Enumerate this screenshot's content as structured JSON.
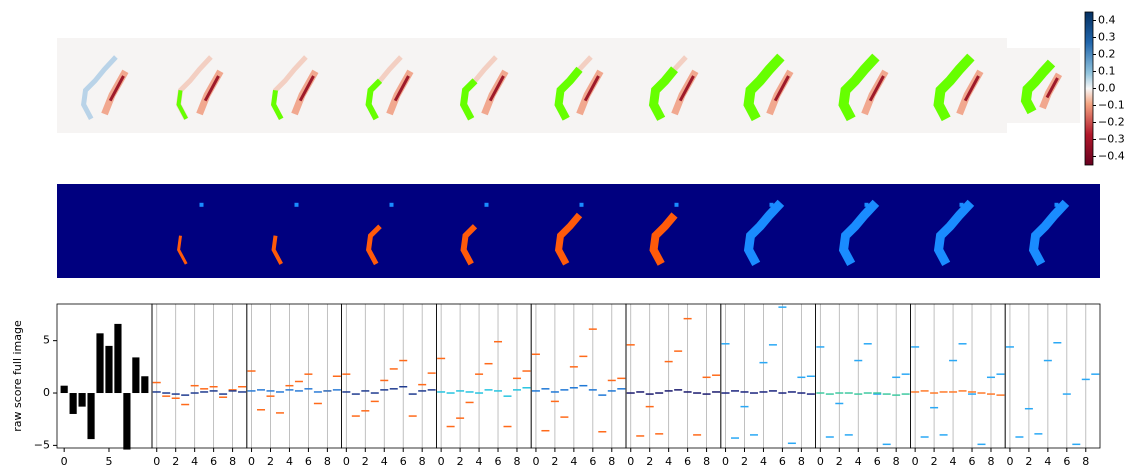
{
  "chart_data": [
    {
      "type": "colorbar",
      "ylim": [
        -0.45,
        0.45
      ],
      "yticks": [
        {
          "value": -0.4,
          "label": "−0.4"
        },
        {
          "value": -0.3,
          "label": "−0.3"
        },
        {
          "value": -0.2,
          "label": "−0.2"
        },
        {
          "value": -0.1,
          "label": "−0.1"
        },
        {
          "value": 0,
          "label": "0.0"
        },
        0.1,
        0.2,
        0.3,
        0.4
      ]
    },
    {
      "type": "bar",
      "ylabel": "raw score full image",
      "x": [
        0,
        1,
        2,
        3,
        4,
        5,
        6,
        7,
        8,
        9
      ],
      "values": [
        0.7,
        -2.0,
        -1.3,
        -4.4,
        5.7,
        4.5,
        6.6,
        -5.4,
        3.4,
        1.6
      ],
      "color": "#000000",
      "xlim": [
        -0.8,
        9.8
      ],
      "xticks": [
        0,
        5
      ],
      "ylim": [
        -5.25,
        8.5
      ],
      "yticks": [
        {
          "value": -5,
          "label": "−5"
        },
        0,
        5
      ]
    },
    {
      "type": "dash",
      "x": [
        0,
        1,
        2,
        3,
        4,
        5,
        6,
        7,
        8,
        9
      ],
      "xlim": [
        -0.5,
        9.5
      ],
      "xticks": [
        0,
        2,
        4,
        6,
        8
      ],
      "ylim": [
        -5.25,
        8.5
      ],
      "grid": true,
      "series": [
        {
          "color": "#ff6a1a",
          "values": [
            1.0,
            -0.3,
            -0.5,
            -1.1,
            0.7,
            0.4,
            0.6,
            -0.4,
            0.3,
            0.6
          ]
        },
        {
          "color": "#1f3b8f",
          "values": [
            0.1,
            0.0,
            -0.1,
            -0.2,
            0.0,
            0.1,
            0.2,
            -0.1,
            0.2,
            0.1
          ]
        }
      ]
    },
    {
      "type": "dash",
      "x": [
        0,
        1,
        2,
        3,
        4,
        5,
        6,
        7,
        8,
        9
      ],
      "xlim": [
        -0.5,
        9.5
      ],
      "xticks": [
        0,
        2,
        4,
        6,
        8
      ],
      "ylim": [
        -5.25,
        8.5
      ],
      "grid": true,
      "series": [
        {
          "color": "#ff6a1a",
          "values": [
            2.1,
            -1.6,
            -0.3,
            -1.9,
            0.7,
            1.1,
            1.8,
            -1.0,
            0.2,
            1.6
          ]
        },
        {
          "color": "#2a7bd6",
          "values": [
            0.2,
            0.3,
            0.2,
            0.1,
            0.3,
            0.2,
            0.4,
            0.1,
            0.2,
            0.3
          ]
        }
      ]
    },
    {
      "type": "dash",
      "x": [
        0,
        1,
        2,
        3,
        4,
        5,
        6,
        7,
        8,
        9
      ],
      "xlim": [
        -0.5,
        9.5
      ],
      "xticks": [
        0,
        2,
        4,
        6,
        8
      ],
      "ylim": [
        -5.25,
        8.5
      ],
      "grid": true,
      "series": [
        {
          "color": "#ff6a1a",
          "values": [
            1.8,
            -2.2,
            -1.7,
            -0.8,
            1.2,
            2.3,
            3.1,
            -2.2,
            0.8,
            1.9
          ]
        },
        {
          "color": "#1f3b8f",
          "values": [
            0.1,
            -0.1,
            0.2,
            0.0,
            0.3,
            0.4,
            0.6,
            -0.1,
            0.2,
            0.3
          ]
        }
      ]
    },
    {
      "type": "dash",
      "x": [
        0,
        1,
        2,
        3,
        4,
        5,
        6,
        7,
        8,
        9
      ],
      "xlim": [
        -0.5,
        9.5
      ],
      "xticks": [
        0,
        2,
        4,
        6,
        8
      ],
      "ylim": [
        -5.25,
        8.5
      ],
      "grid": true,
      "series": [
        {
          "color": "#ff6a1a",
          "values": [
            3.3,
            -3.2,
            -2.4,
            -0.9,
            1.8,
            2.8,
            4.9,
            -3.2,
            1.4,
            2.1
          ]
        },
        {
          "color": "#27c4e0",
          "values": [
            0.1,
            0.0,
            0.2,
            0.1,
            0.0,
            0.3,
            0.2,
            -0.3,
            0.3,
            0.5
          ]
        }
      ]
    },
    {
      "type": "dash",
      "x": [
        0,
        1,
        2,
        3,
        4,
        5,
        6,
        7,
        8,
        9
      ],
      "xlim": [
        -0.5,
        9.5
      ],
      "xticks": [
        0,
        2,
        4,
        6,
        8
      ],
      "ylim": [
        -5.25,
        8.5
      ],
      "grid": true,
      "series": [
        {
          "color": "#ff6a1a",
          "values": [
            3.7,
            -3.6,
            -0.8,
            -2.3,
            2.5,
            3.5,
            6.1,
            -3.7,
            1.2,
            1.4
          ]
        },
        {
          "color": "#1f78d6",
          "values": [
            0.2,
            0.4,
            0.1,
            0.3,
            0.5,
            0.7,
            0.3,
            -0.2,
            0.2,
            0.4
          ]
        }
      ]
    },
    {
      "type": "dash",
      "x": [
        0,
        1,
        2,
        3,
        4,
        5,
        6,
        7,
        8,
        9
      ],
      "xlim": [
        -0.5,
        9.5
      ],
      "xticks": [
        0,
        2,
        4,
        6,
        8
      ],
      "ylim": [
        -5.25,
        8.5
      ],
      "grid": true,
      "series": [
        {
          "color": "#ff6a1a",
          "values": [
            4.6,
            -4.1,
            -1.3,
            -3.9,
            3.0,
            4.0,
            7.1,
            -4.0,
            1.5,
            1.7
          ]
        },
        {
          "color": "#1a1a6e",
          "values": [
            0.0,
            0.1,
            -0.1,
            0.0,
            0.2,
            0.3,
            0.1,
            0.0,
            -0.1,
            0.1
          ]
        }
      ]
    },
    {
      "type": "dash",
      "x": [
        0,
        1,
        2,
        3,
        4,
        5,
        6,
        7,
        8,
        9
      ],
      "xlim": [
        -0.5,
        9.5
      ],
      "xticks": [
        0,
        2,
        4,
        6,
        8
      ],
      "ylim": [
        -5.25,
        8.5
      ],
      "grid": true,
      "series": [
        {
          "color": "#2aa8f5",
          "values": [
            4.7,
            -4.3,
            -1.3,
            -4.0,
            2.9,
            4.6,
            8.2,
            -4.8,
            1.5,
            1.6
          ]
        },
        {
          "color": "#1a237e",
          "values": [
            0.0,
            0.2,
            0.1,
            0.0,
            0.1,
            0.2,
            0.0,
            0.1,
            0.0,
            -0.1
          ]
        }
      ]
    },
    {
      "type": "dash",
      "x": [
        0,
        1,
        2,
        3,
        4,
        5,
        6,
        7,
        8,
        9
      ],
      "xlim": [
        -0.5,
        9.5
      ],
      "xticks": [
        0,
        2,
        4,
        6,
        8
      ],
      "ylim": [
        -5.25,
        8.5
      ],
      "grid": true,
      "series": [
        {
          "color": "#2aa8f5",
          "values": [
            4.4,
            -4.2,
            -1.0,
            -4.0,
            3.1,
            4.7,
            -0.1,
            -4.9,
            1.5,
            1.8
          ]
        },
        {
          "color": "#3fc9a0",
          "values": [
            0.0,
            -0.1,
            0.0,
            0.0,
            -0.1,
            0.0,
            0.0,
            -0.1,
            -0.2,
            -0.1
          ]
        }
      ]
    },
    {
      "type": "dash",
      "x": [
        0,
        1,
        2,
        3,
        4,
        5,
        6,
        7,
        8,
        9
      ],
      "xlim": [
        -0.5,
        9.5
      ],
      "xticks": [
        0,
        2,
        4,
        6,
        8
      ],
      "ylim": [
        -5.25,
        8.5
      ],
      "grid": true,
      "series": [
        {
          "color": "#2aa8f5",
          "values": [
            4.4,
            -4.2,
            -1.4,
            -4.0,
            3.1,
            4.7,
            -0.1,
            -4.9,
            1.5,
            1.8
          ]
        },
        {
          "color": "#ff7a2a",
          "values": [
            0.1,
            0.2,
            0.0,
            0.1,
            0.1,
            0.2,
            0.1,
            0.0,
            -0.1,
            -0.2
          ]
        }
      ]
    },
    {
      "type": "dash",
      "x": [
        0,
        1,
        2,
        3,
        4,
        5,
        6,
        7,
        8,
        9
      ],
      "xlim": [
        -0.5,
        9.5
      ],
      "xticks": [
        0,
        2,
        4,
        6,
        8
      ],
      "ylim": [
        -5.25,
        8.5
      ],
      "grid": true,
      "series": [
        {
          "color": "#2aa8f5",
          "values": [
            4.4,
            -4.2,
            -1.5,
            -3.9,
            3.1,
            4.8,
            -0.1,
            -4.9,
            1.3,
            1.8
          ]
        }
      ]
    }
  ]
}
